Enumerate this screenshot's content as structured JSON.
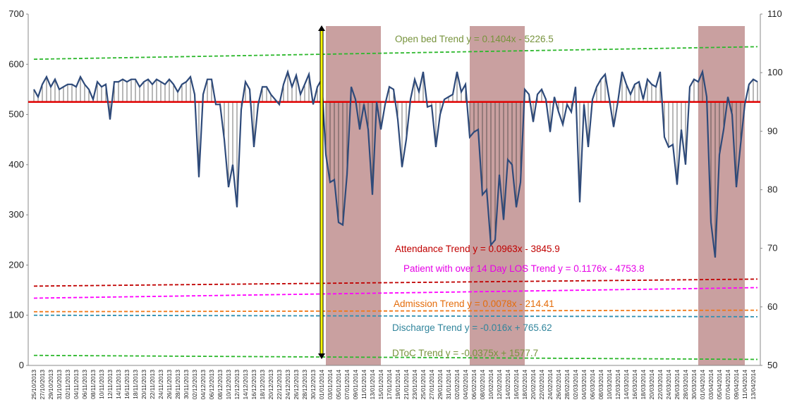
{
  "chart_data": {
    "type": "line",
    "categories": [
      "25/10/2013",
      null,
      "27/10/2013",
      null,
      "29/10/2013",
      null,
      "31/10/2013",
      null,
      "02/11/2013",
      null,
      "04/11/2013",
      null,
      "06/11/2013",
      null,
      "08/11/2013",
      null,
      "10/11/2013",
      null,
      "12/11/2013",
      null,
      "14/11/2013",
      null,
      "16/11/2013",
      null,
      "18/11/2013",
      null,
      "20/11/2013",
      null,
      "22/11/2013",
      null,
      "24/11/2013",
      null,
      "26/11/2013",
      null,
      "28/11/2013",
      null,
      "30/11/2013",
      null,
      "02/12/2013",
      null,
      "04/12/2013",
      null,
      "06/12/2013",
      null,
      "08/12/2013",
      null,
      "10/12/2013",
      null,
      "12/12/2013",
      null,
      "14/12/2013",
      null,
      "16/12/2013",
      null,
      "18/12/2013",
      null,
      "20/12/2013",
      null,
      "22/12/2013",
      null,
      "24/12/2013",
      null,
      "26/12/2013",
      null,
      "28/12/2013",
      null,
      "30/12/2013",
      null,
      "01/01/2014",
      null,
      "03/01/2014",
      null,
      "05/01/2014",
      null,
      "07/01/2014",
      null,
      "09/01/2014",
      null,
      "11/01/2014",
      null,
      "13/01/2014",
      null,
      "15/01/2014",
      null,
      "17/01/2014",
      null,
      "19/01/2014",
      null,
      "21/01/2014",
      null,
      "23/01/2014",
      null,
      "25/01/2014",
      null,
      "27/01/2014",
      null,
      "29/01/2014",
      null,
      "31/01/2014",
      null,
      "02/02/2014",
      null,
      "04/02/2014",
      null,
      "06/02/2014",
      null,
      "08/02/2014",
      null,
      "10/02/2014",
      null,
      "12/02/2014",
      null,
      "14/02/2014",
      null,
      "16/02/2014",
      null,
      "18/02/2014",
      null,
      "20/02/2014",
      null,
      "22/02/2014",
      null,
      "24/02/2014",
      null,
      "26/02/2014",
      null,
      "28/02/2014",
      null,
      "02/03/2014",
      null,
      "04/03/2014",
      null,
      "06/03/2014",
      null,
      "08/03/2014",
      null,
      "10/03/2014",
      null,
      "12/03/2014",
      null,
      "14/03/2014",
      null,
      "16/03/2014",
      null,
      "18/03/2014",
      null,
      "20/03/2014",
      null,
      "22/03/2014",
      null,
      "24/03/2014",
      null,
      "26/03/2014",
      null,
      "28/03/2014",
      null,
      "30/03/2014",
      null,
      "01/04/2014",
      null,
      "03/04/2014",
      null,
      "05/04/2014",
      null,
      "07/04/2014",
      null,
      "09/04/2014",
      null,
      "11/04/2014",
      null,
      "13/04/2014",
      null
    ],
    "series": [
      {
        "color": "#2e4a7a",
        "values": [
          550,
          535,
          560,
          575,
          555,
          570,
          550,
          555,
          560,
          560,
          555,
          575,
          560,
          550,
          530,
          565,
          555,
          560,
          490,
          565,
          565,
          570,
          565,
          570,
          570,
          555,
          565,
          570,
          560,
          570,
          565,
          560,
          570,
          560,
          545,
          560,
          565,
          575,
          540,
          375,
          540,
          570,
          570,
          520,
          520,
          450,
          355,
          400,
          315,
          510,
          565,
          550,
          435,
          520,
          555,
          555,
          540,
          530,
          520,
          560,
          585,
          555,
          578,
          540,
          560,
          580,
          520,
          555,
          570,
          420,
          365,
          370,
          285,
          280,
          380,
          555,
          530,
          470,
          520,
          470,
          340,
          525,
          470,
          520,
          555,
          550,
          490,
          395,
          450,
          530,
          570,
          545,
          585,
          515,
          518,
          435,
          500,
          530,
          535,
          540,
          585,
          545,
          560,
          455,
          465,
          470,
          340,
          350,
          240,
          250,
          380,
          290,
          410,
          400,
          315,
          365,
          550,
          540,
          485,
          540,
          550,
          530,
          465,
          535,
          505,
          480,
          520,
          505,
          555,
          325,
          520,
          435,
          530,
          555,
          570,
          580,
          530,
          475,
          525,
          585,
          560,
          540,
          560,
          565,
          530,
          570,
          560,
          555,
          585,
          455,
          435,
          440,
          360,
          470,
          400,
          555,
          570,
          565,
          585,
          535,
          285,
          215,
          420,
          470,
          535,
          500,
          355,
          440,
          520,
          560,
          570,
          565
        ]
      }
    ],
    "threshold": 525,
    "threshold_color": "#e00000",
    "trend_lines": [
      {
        "color": "#2db82d",
        "start": 610,
        "end": 635,
        "label": "Open bed Trend y = 0.1404x - 5226.5",
        "label_color": "#77933c"
      },
      {
        "color": "#c00000",
        "start": 158,
        "end": 172,
        "label": "Attendance Trend y = 0.0963x - 3845.9",
        "label_color": "#c00000"
      },
      {
        "color": "#ff00ff",
        "start": 134,
        "end": 155,
        "label": "Patient with over 14 Day LOS Trend y = 0.1176x - 4753.8",
        "label_color": "#e600e6"
      },
      {
        "color": "#f07818",
        "start": 107,
        "end": 110,
        "label": "Admission Trend y = 0.0078x - 214.41",
        "label_color": "#e46c0a"
      },
      {
        "color": "#2f8fb0",
        "start": 100,
        "end": 97,
        "label": "Discharge Trend y = -0.016x + 765.62",
        "label_color": "#31859c"
      },
      {
        "color": "#2db82d",
        "start": 20,
        "end": 12,
        "label": "DToC Trend y = -0.0375x + 1577.7",
        "label_color": "#77933c"
      }
    ],
    "shaded_ranges": [
      [
        69,
        82
      ],
      [
        103,
        116
      ],
      [
        157,
        168
      ]
    ],
    "shade_color": "#c9a0a0",
    "marker_index": 68,
    "ylim": [
      0,
      700
    ],
    "yticks": [
      0,
      100,
      200,
      300,
      400,
      500,
      600,
      700
    ],
    "y2lim": [
      50,
      110
    ],
    "y2ticks": [
      50,
      60,
      70,
      80,
      90,
      100,
      110
    ]
  }
}
